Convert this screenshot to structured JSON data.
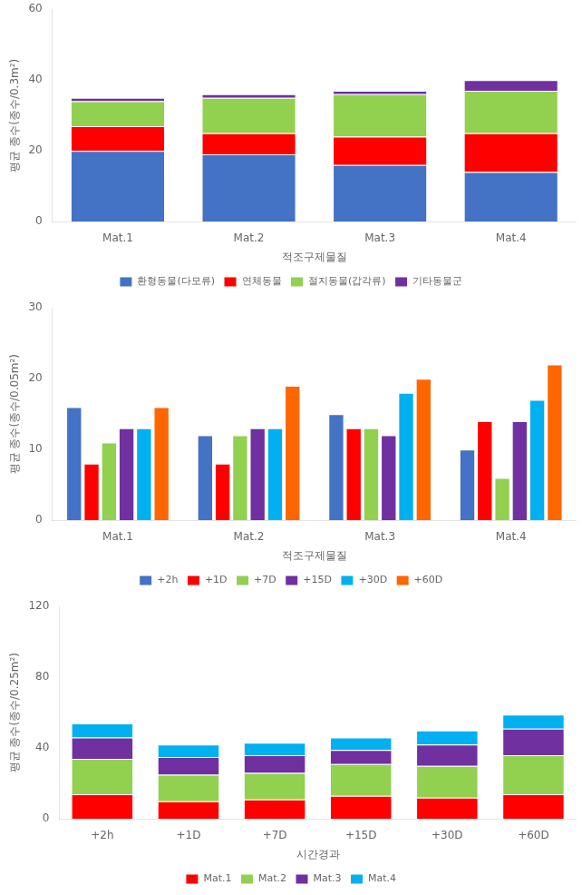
{
  "chart_data": [
    {
      "type": "bar",
      "stacked": true,
      "grid": false,
      "legend": "bottom",
      "xlabel": "적조구제물질",
      "ylabel": "평균 종수(종수/0.3m²)",
      "categories": [
        "Mat.1",
        "Mat.2",
        "Mat.3",
        "Mat.4"
      ],
      "series": [
        {
          "name": "환형동물(다모류)",
          "color": "#4472C4",
          "values": [
            20,
            19,
            16,
            14
          ]
        },
        {
          "name": "연체동물",
          "color": "#FF0000",
          "values": [
            7,
            6,
            8,
            11
          ]
        },
        {
          "name": "절지동물(갑각류)",
          "color": "#92D050",
          "values": [
            7,
            10,
            12,
            12
          ]
        },
        {
          "name": "기타동물군",
          "color": "#7030A0",
          "values": [
            1,
            1,
            1,
            3
          ]
        }
      ],
      "ylim": [
        0,
        60
      ],
      "yticks": [
        0,
        20,
        40,
        60
      ]
    },
    {
      "type": "bar",
      "stacked": false,
      "grid": false,
      "legend": "bottom",
      "xlabel": "적조구제물질",
      "ylabel": "평균 종수(종수/0.05m²)",
      "categories": [
        "Mat.1",
        "Mat.2",
        "Mat.3",
        "Mat.4"
      ],
      "series": [
        {
          "name": "+2h",
          "color": "#4472C4",
          "values": [
            16,
            12,
            15,
            10
          ]
        },
        {
          "name": "+1D",
          "color": "#FF0000",
          "values": [
            8,
            8,
            13,
            14
          ]
        },
        {
          "name": "+7D",
          "color": "#92D050",
          "values": [
            11,
            12,
            13,
            6
          ]
        },
        {
          "name": "+15D",
          "color": "#7030A0",
          "values": [
            13,
            13,
            12,
            14
          ]
        },
        {
          "name": "+30D",
          "color": "#00B0F0",
          "values": [
            13,
            13,
            18,
            17
          ]
        },
        {
          "name": "+60D",
          "color": "#FF6600",
          "values": [
            16,
            19,
            20,
            22
          ]
        }
      ],
      "ylim": [
        0,
        30
      ],
      "yticks": [
        0,
        10,
        20,
        30
      ]
    },
    {
      "type": "bar",
      "stacked": true,
      "grid": false,
      "legend": "bottom",
      "xlabel": "시간경과",
      "ylabel": "평균 종수(종수/0.25m²)",
      "categories": [
        "+2h",
        "+1D",
        "+7D",
        "+15D",
        "+30D",
        "+60D"
      ],
      "series": [
        {
          "name": "Mat.1",
          "color": "#FF0000",
          "values": [
            14,
            10,
            11,
            13,
            12,
            14
          ]
        },
        {
          "name": "Mat.2",
          "color": "#92D050",
          "values": [
            20,
            15,
            15,
            18,
            18,
            22
          ]
        },
        {
          "name": "Mat.3",
          "color": "#7030A0",
          "values": [
            12,
            10,
            10,
            8,
            12,
            15
          ]
        },
        {
          "name": "Mat.4",
          "color": "#00B0F0",
          "values": [
            8,
            7,
            7,
            7,
            8,
            8
          ]
        }
      ],
      "ylim": [
        0,
        120
      ],
      "yticks": [
        0,
        40,
        80,
        120
      ]
    }
  ]
}
